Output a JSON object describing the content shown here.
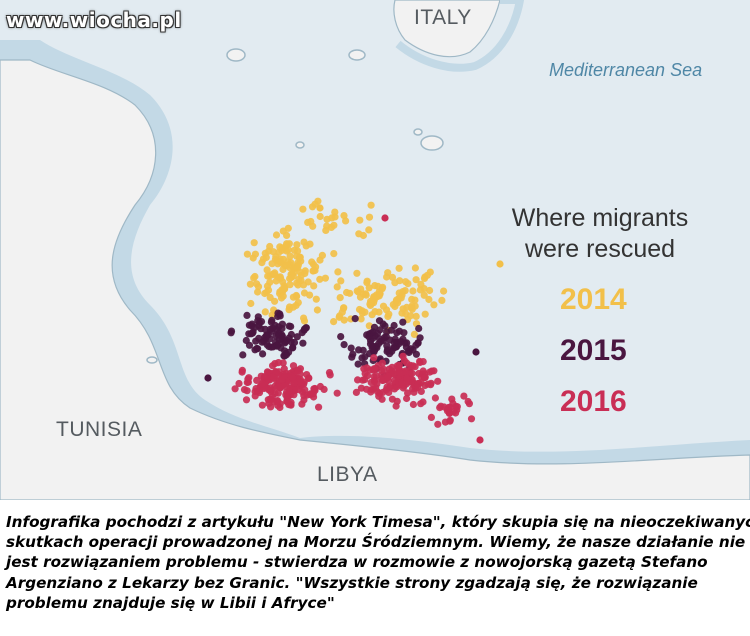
{
  "watermark": "www.wiocha.pl",
  "map": {
    "countries": {
      "italy": "ITALY",
      "tunisia": "TUNISIA",
      "libya": "LIBYA"
    },
    "sea": "Mediterranean Sea",
    "colors": {
      "water": "#e2ebf1",
      "land": "#f2f2f2",
      "coast_shallow": "#c3d9e6",
      "land_stroke": "#9fb8c6"
    }
  },
  "legend": {
    "title_line1": "Where migrants",
    "title_line2": "were rescued",
    "years": [
      {
        "label": "2014",
        "color": "#f2c04a"
      },
      {
        "label": "2015",
        "color": "#4a1640"
      },
      {
        "label": "2016",
        "color": "#c92e55"
      }
    ]
  },
  "caption": {
    "lines": [
      "Infografika pochodzi z artykułu \"New York Timesa\", który skupia się na nieoczekiwanych",
      "skutkach operacji prowadzonej na Morzu Śródziemnym.  Wiemy, że nasze działanie nie",
      "jest rozwiązaniem problemu - stwierdza w rozmowie z nowojorską gazetą Stefano",
      "Argenziano z Lekarzy bez Granic. \"Wszystkie strony zgadzają się, że rozwiązanie",
      "problemu znajduje się w Libii i Afryce\""
    ]
  }
}
